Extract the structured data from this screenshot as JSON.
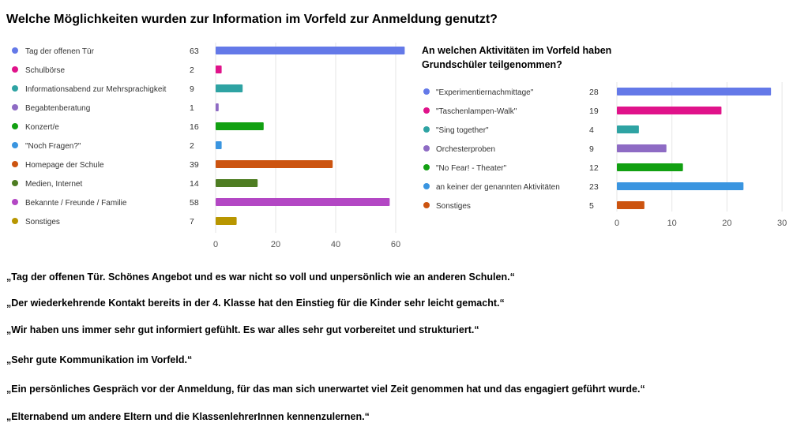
{
  "chart_data": [
    {
      "type": "bar",
      "orientation": "horizontal",
      "title": "Welche Möglichkeiten wurden zur Information im Vorfeld zur Anmeldung genutzt?",
      "categories": [
        "Tag der offenen Tür",
        "Schulbörse",
        "Informationsabend zur Mehrsprachigkeit",
        "Begabtenberatung",
        "Konzert/e",
        "\"Noch Fragen?\"",
        "Homepage der Schule",
        "Medien, Internet",
        "Bekannte / Freunde / Familie",
        "Sonstiges"
      ],
      "values": [
        63,
        2,
        9,
        1,
        16,
        2,
        39,
        14,
        58,
        7
      ],
      "colors": [
        "#6479e8",
        "#e0138a",
        "#2ea3a3",
        "#8e6bc4",
        "#12a012",
        "#3a95e0",
        "#cc5410",
        "#4e7d22",
        "#b347c4",
        "#b89600"
      ],
      "xlim": [
        0,
        63
      ],
      "xticks": [
        0,
        20,
        40,
        60
      ],
      "grid": true,
      "legend": "left"
    },
    {
      "type": "bar",
      "orientation": "horizontal",
      "title": "An welchen Aktivitäten im Vorfeld haben Grundschüler teilgenommen?",
      "categories": [
        "\"Experimentiernachmittage\"",
        "\"Taschenlampen-Walk\"",
        "\"Sing together\"",
        "Orchesterproben",
        "\"No Fear! - Theater\"",
        "an keiner der genannten Aktivitäten",
        "Sonstiges"
      ],
      "values": [
        28,
        19,
        4,
        9,
        12,
        23,
        5
      ],
      "colors": [
        "#6479e8",
        "#e0138a",
        "#2ea3a3",
        "#8e6bc4",
        "#12a012",
        "#3a95e0",
        "#cc5410"
      ],
      "xlim": [
        0,
        30
      ],
      "xticks": [
        0,
        10,
        20,
        30
      ],
      "grid": true,
      "legend": "left"
    }
  ],
  "quotes": [
    "„Tag der offenen Tür. Schönes Angebot und es war nicht so voll und unpersönlich wie an anderen Schulen.“",
    "„Der wiederkehrende Kontakt bereits in der 4. Klasse hat den Einstieg für die Kinder sehr leicht gemacht.“",
    "„Wir haben uns immer sehr gut informiert gefühlt. Es war alles sehr gut vorbereitet und strukturiert.“",
    "„Sehr gute Kommunikation im Vorfeld.“",
    "„Ein persönliches Gespräch vor der Anmeldung, für das man sich unerwartet viel Zeit genommen hat und das engagiert geführt wurde.“",
    "„Elternabend um andere Eltern und die KlassenlehrerInnen kennenzulernen.“"
  ]
}
